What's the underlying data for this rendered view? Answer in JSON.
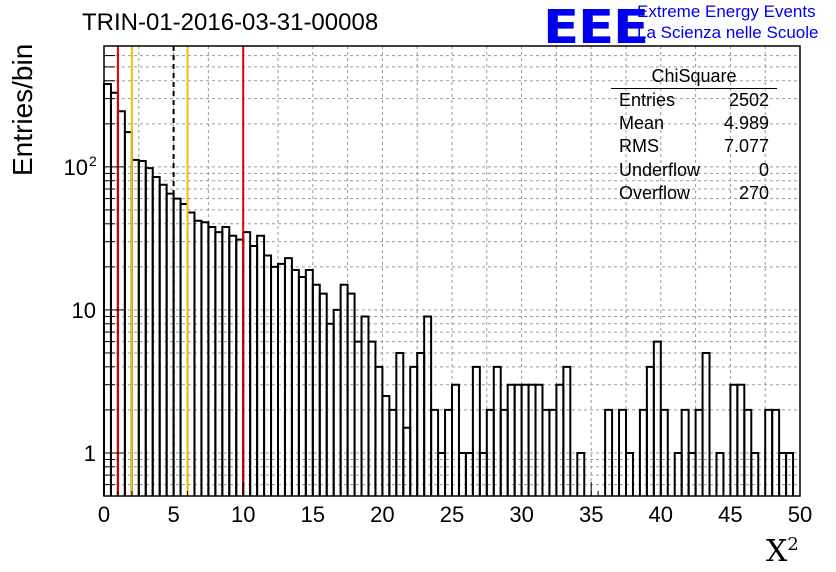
{
  "title": "TRIN-01-2016-03-31-00008",
  "logo": {
    "mark": "EEE",
    "line1": "Extreme Energy Events",
    "line2": "La Scienza nelle Scuole"
  },
  "stats": {
    "title": "ChiSquare",
    "rows": [
      {
        "label": "Entries",
        "value": "2502"
      },
      {
        "label": "Mean",
        "value": "4.989"
      },
      {
        "label": "RMS",
        "value": "7.077"
      },
      {
        "label": "Underflow",
        "value": "0"
      },
      {
        "label": "Overflow",
        "value": "270"
      }
    ]
  },
  "chart_data": {
    "type": "bar",
    "ylabel": "Entries/bin",
    "xlabel_base": "X",
    "xlabel_exp": "2",
    "xlim": [
      0,
      50
    ],
    "ylim": [
      0.5,
      700
    ],
    "yscale": "log",
    "grid": true,
    "bin_width": 0.5,
    "x_ticks": [
      "0",
      "5",
      "10",
      "15",
      "20",
      "25",
      "30",
      "35",
      "40",
      "45",
      "50"
    ],
    "y_ticks": [
      {
        "value": 1,
        "label": "1"
      },
      {
        "value": 10,
        "label": "10"
      },
      {
        "value": 100,
        "label": "10",
        "exp": "2"
      }
    ],
    "values": [
      380,
      330,
      245,
      175,
      112,
      110,
      98,
      85,
      75,
      65,
      60,
      55,
      48,
      42,
      41,
      38,
      35,
      38,
      33,
      31,
      35,
      28,
      33,
      24,
      20,
      21,
      23,
      19,
      17,
      19,
      15,
      13,
      8,
      10,
      15,
      13,
      6,
      9,
      6,
      4,
      2.5,
      2,
      5,
      1.5,
      4,
      5,
      9,
      2,
      1,
      2,
      3,
      1,
      1,
      4,
      1,
      2,
      4,
      2,
      3,
      3,
      3,
      3,
      3,
      2,
      2,
      3,
      4,
      0,
      1,
      0,
      0,
      0,
      2,
      0,
      2,
      1,
      0,
      2,
      4,
      6,
      2,
      0,
      1,
      2,
      1,
      2,
      5,
      0,
      1,
      0,
      3,
      3,
      2,
      1,
      0,
      2,
      2,
      1,
      1,
      0
    ],
    "reference_lines": [
      {
        "x": 1,
        "color": "#dd0000",
        "style": "solid"
      },
      {
        "x": 2,
        "color": "#f0c000",
        "style": "solid"
      },
      {
        "x": 5,
        "color": "#000000",
        "style": "dashed"
      },
      {
        "x": 6,
        "color": "#f0c000",
        "style": "solid"
      },
      {
        "x": 10,
        "color": "#dd0000",
        "style": "solid"
      }
    ]
  }
}
